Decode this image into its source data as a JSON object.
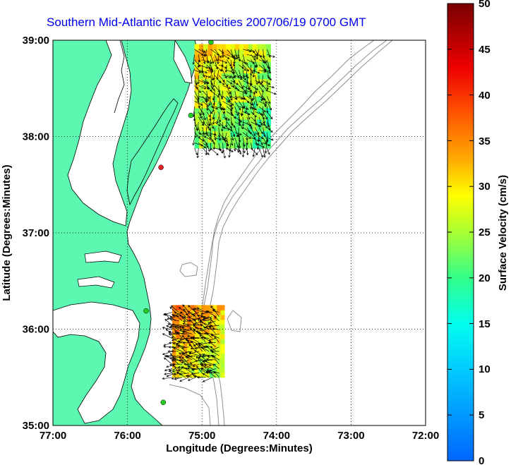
{
  "title": "Southern Mid-Atlantic Raw Velocities 2007/06/19 0700 GMT",
  "x_axis": {
    "label": "Longitude (Degrees:Minutes)",
    "ticks": [
      "77:00",
      "76:00",
      "75:00",
      "74:00",
      "73:00",
      "72:00"
    ]
  },
  "y_axis": {
    "label": "Latitude (Degrees:Minutes)",
    "ticks": [
      "39:00",
      "38:00",
      "37:00",
      "36:00",
      "35:00"
    ]
  },
  "colorbar": {
    "label": "Surface Velocity (cm/s)",
    "ticks": [
      "50",
      "45",
      "40",
      "35",
      "30",
      "25",
      "20",
      "15",
      "10",
      "5",
      "0"
    ],
    "min": 0,
    "max": 50
  },
  "colors": {
    "land": "#5cf7b0",
    "coastline": "#000000",
    "bathymetry": "#8f8f8f",
    "site_active": "#22cc22",
    "site_inactive": "#dd2222",
    "arrows": "#000000"
  },
  "grid": "dotted",
  "extent": {
    "lon": [
      -77,
      -72
    ],
    "lat": [
      35,
      39
    ]
  },
  "chart_data": {
    "type": "vector-field-map",
    "xlim": [
      -77,
      -72
    ],
    "ylim": [
      35,
      39
    ],
    "sites": [
      {
        "lon": -74.88,
        "lat": 38.98,
        "status": "active"
      },
      {
        "lon": -75.15,
        "lat": 38.22,
        "status": "active"
      },
      {
        "lon": -75.55,
        "lat": 37.68,
        "status": "inactive"
      },
      {
        "lon": -75.75,
        "lat": 36.19,
        "status": "active"
      },
      {
        "lon": -75.52,
        "lat": 35.24,
        "status": "active"
      }
    ],
    "regions": [
      {
        "name": "north",
        "lon": [
          -75.1,
          -74.1
        ],
        "lat": [
          37.88,
          38.92
        ],
        "speed_range": [
          15,
          35
        ]
      },
      {
        "name": "south",
        "lon": [
          -75.4,
          -74.75
        ],
        "lat": [
          35.5,
          36.2
        ],
        "speed_range": [
          20,
          40
        ]
      }
    ]
  }
}
